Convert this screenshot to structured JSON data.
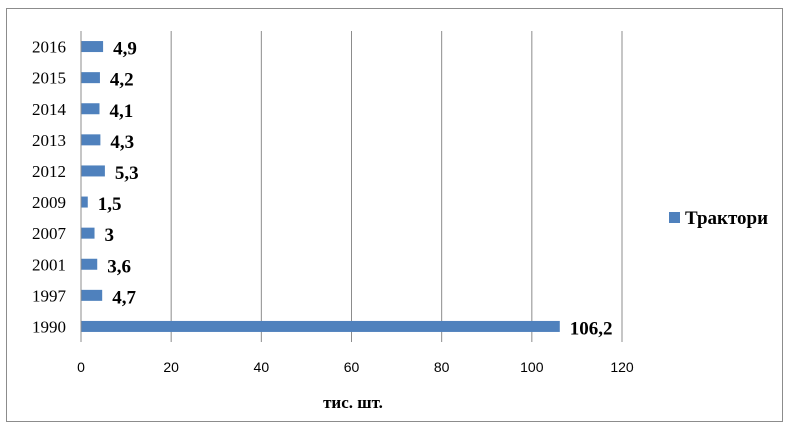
{
  "chart_data": {
    "type": "bar",
    "orientation": "horizontal",
    "categories": [
      "1990",
      "1997",
      "2001",
      "2007",
      "2009",
      "2012",
      "2013",
      "2014",
      "2015",
      "2016"
    ],
    "series": [
      {
        "name": "Трактори",
        "values": [
          106.2,
          4.7,
          3.6,
          3,
          1.5,
          5.3,
          4.3,
          4.1,
          4.2,
          4.9
        ],
        "labels": [
          "106,2",
          "4,7",
          "3,6",
          "3",
          "1,5",
          "5,3",
          "4,3",
          "4,1",
          "4,2",
          "4,9"
        ],
        "color": "#4f81bd"
      }
    ],
    "xlabel": "тис. шт.",
    "xlim": [
      0,
      120
    ],
    "xticks": [
      "0",
      "20",
      "40",
      "60",
      "80",
      "100",
      "120"
    ],
    "grid": "vertical",
    "legend_position": "right"
  }
}
